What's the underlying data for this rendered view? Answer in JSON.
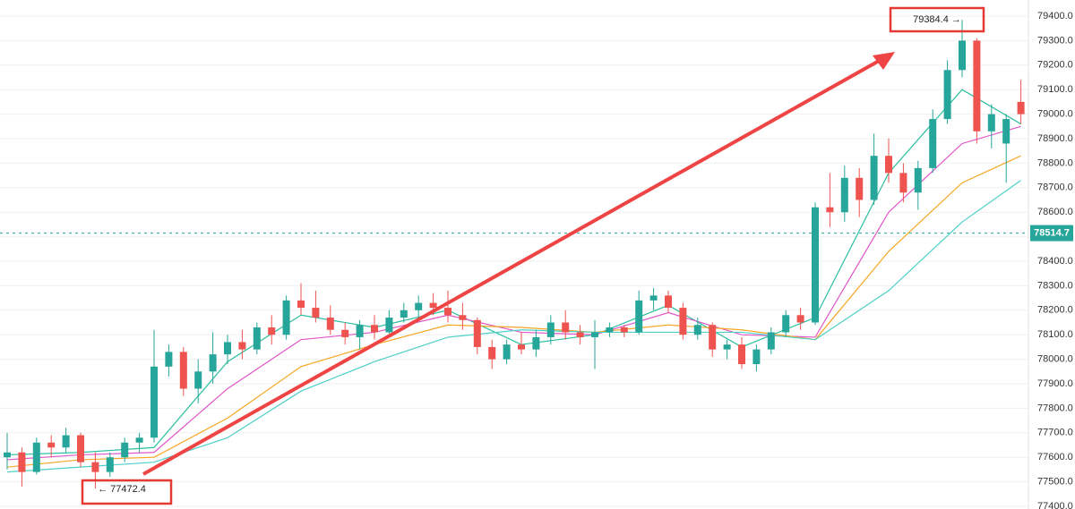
{
  "chart_data": {
    "type": "candlestick",
    "up_color": "#26a69a",
    "down_color": "#ef5350",
    "open": [
      77600,
      77620,
      77540,
      77660,
      77640,
      77690,
      77580,
      77540,
      77600,
      77660,
      77680,
      77970,
      78030,
      77880,
      77950,
      78020,
      78070,
      78040,
      78130,
      78100,
      78240,
      78210,
      78170,
      78120,
      78090,
      78140,
      78110,
      78170,
      78200,
      78230,
      78210,
      78180,
      78160,
      78050,
      78000,
      78060,
      78040,
      78090,
      78150,
      78110,
      78090,
      78110,
      78130,
      78110,
      78240,
      78260,
      78210,
      78100,
      78140,
      78040,
      78060,
      77980,
      78040,
      78110,
      78180,
      78150,
      78620,
      78600,
      78740,
      78650,
      78830,
      78760,
      78680,
      78780,
      78980,
      79180,
      79300,
      78930,
      78880,
      79050
    ],
    "high": [
      77700,
      77640,
      77680,
      77690,
      77720,
      77700,
      77620,
      77620,
      77680,
      77700,
      78120,
      78060,
      78050,
      78000,
      78110,
      78100,
      78120,
      78150,
      78180,
      78260,
      78310,
      78280,
      78220,
      78150,
      78160,
      78180,
      78200,
      78230,
      78260,
      78270,
      78280,
      78230,
      78170,
      78080,
      78080,
      78110,
      78120,
      78180,
      78200,
      78140,
      78160,
      78150,
      78140,
      78280,
      78290,
      78280,
      78230,
      78170,
      78150,
      78080,
      78090,
      78060,
      78130,
      78200,
      78210,
      78640,
      78760,
      78790,
      78780,
      78920,
      78900,
      78800,
      78810,
      79020,
      79220,
      79384.4,
      79310,
      79040,
      79000,
      79140
    ],
    "low": [
      77550,
      77480,
      77530,
      77600,
      77620,
      77560,
      77472.4,
      77520,
      77580,
      77620,
      77660,
      77930,
      77850,
      77820,
      77900,
      77980,
      78000,
      78020,
      78060,
      78080,
      78180,
      78150,
      78100,
      78060,
      78040,
      78080,
      78090,
      78150,
      78170,
      78180,
      78150,
      78120,
      78020,
      77960,
      77980,
      78020,
      78010,
      78060,
      78080,
      78060,
      77960,
      78090,
      78090,
      78100,
      78200,
      78190,
      78080,
      78080,
      78010,
      78000,
      77960,
      77950,
      78020,
      78090,
      78120,
      78140,
      78540,
      78560,
      78580,
      78630,
      78720,
      78640,
      78610,
      78760,
      78960,
      79150,
      78880,
      78860,
      78720,
      78960
    ],
    "close": [
      77620,
      77540,
      77660,
      77640,
      77690,
      77580,
      77540,
      77600,
      77660,
      77680,
      77970,
      78030,
      77880,
      77950,
      78020,
      78070,
      78040,
      78130,
      78100,
      78240,
      78210,
      78170,
      78120,
      78090,
      78140,
      78110,
      78170,
      78200,
      78230,
      78210,
      78180,
      78160,
      78050,
      78000,
      78060,
      78040,
      78090,
      78150,
      78110,
      78090,
      78110,
      78130,
      78110,
      78240,
      78260,
      78210,
      78100,
      78140,
      78040,
      78060,
      77980,
      78040,
      78110,
      78180,
      78150,
      78620,
      78600,
      78740,
      78650,
      78830,
      78760,
      78680,
      78780,
      78980,
      79180,
      79300,
      78930,
      79000,
      78980,
      79000
    ],
    "ma_x": [
      0,
      5,
      10,
      15,
      20,
      25,
      30,
      35,
      40,
      45,
      50,
      55,
      60,
      65,
      69
    ],
    "ma_lines": [
      {
        "color": "#2bbfa0",
        "values": [
          77610,
          77620,
          77640,
          77990,
          78180,
          78130,
          78200,
          78060,
          78100,
          78220,
          78050,
          78170,
          78760,
          79100,
          78960
        ]
      },
      {
        "color": "#e055c8",
        "values": [
          77590,
          77610,
          77620,
          77880,
          78080,
          78110,
          78180,
          78110,
          78100,
          78190,
          78100,
          78090,
          78600,
          78880,
          78950
        ]
      },
      {
        "color": "#f5a623",
        "values": [
          77560,
          77590,
          77600,
          77760,
          77970,
          78060,
          78140,
          78130,
          78110,
          78140,
          78120,
          78080,
          78440,
          78720,
          78830
        ]
      },
      {
        "color": "#4dd0c8",
        "values": [
          77540,
          77560,
          77580,
          77680,
          77870,
          77990,
          78090,
          78120,
          78110,
          78110,
          78110,
          78080,
          78280,
          78560,
          78730
        ]
      }
    ],
    "ylim": [
      77400,
      79400
    ],
    "yticks": [
      {
        "value": 77400,
        "label": "77400.0"
      },
      {
        "value": 77500,
        "label": "77500.0"
      },
      {
        "value": 77600,
        "label": "77600.0"
      },
      {
        "value": 77700,
        "label": "77700.0"
      },
      {
        "value": 77800,
        "label": "77800.0"
      },
      {
        "value": 77900,
        "label": "77900.0"
      },
      {
        "value": 78000,
        "label": "78000.0"
      },
      {
        "value": 78100,
        "label": "78100.0"
      },
      {
        "value": 78200,
        "label": "78200.0"
      },
      {
        "value": 78300,
        "label": "78300.0"
      },
      {
        "value": 78400,
        "label": "78400.0"
      },
      {
        "value": 78500,
        "label": "78500.0"
      },
      {
        "value": 78600,
        "label": "78600.0"
      },
      {
        "value": 78700,
        "label": "78700.0"
      },
      {
        "value": 78800,
        "label": "78800.0"
      },
      {
        "value": 78900,
        "label": "78900.0"
      },
      {
        "value": 79000,
        "label": "79000.0"
      },
      {
        "value": 79100,
        "label": "79100.0"
      },
      {
        "value": 79200,
        "label": "79200.0"
      },
      {
        "value": 79300,
        "label": "79300.0"
      },
      {
        "value": 79400,
        "label": "79400.0"
      }
    ],
    "grid": true,
    "last_price": 78514.7,
    "annotations": [
      {
        "text": "79384.4 →"
      },
      {
        "text": "← 77472.4"
      }
    ]
  }
}
